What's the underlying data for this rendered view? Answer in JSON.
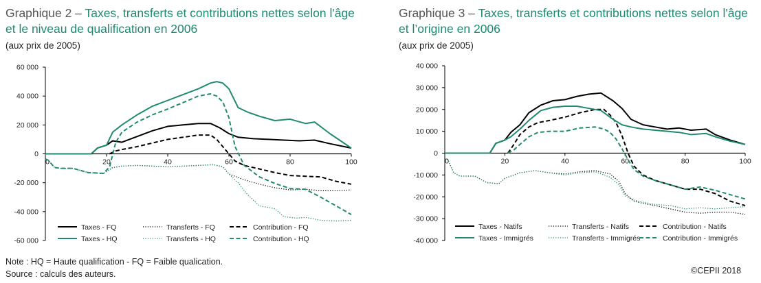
{
  "charts": [
    {
      "title_prefix": "Graphique 2 – ",
      "title_main": "Taxes, transferts et contributions nettes selon l'âge",
      "title_line2": "et le niveau de qualification en 2006",
      "subtitle": "(aux prix de 2005)"
    },
    {
      "title_prefix": "Graphique 3 – ",
      "title_main": "Taxes, transferts et contributions nettes selon l'âge",
      "title_line2": "et l’origine en 2006",
      "subtitle": "(aux prix de 2005)"
    }
  ],
  "footer": {
    "note": "Note : HQ = Haute qualification - FQ = Faible qualication.",
    "source": "Source : calculs des auteurs.",
    "copyright": "©CEPII 2018"
  },
  "colors": {
    "black": "#000000",
    "green": "#1f8a70"
  },
  "chart_data": [
    {
      "type": "line",
      "title": "Taxes, transferts et contributions nettes selon l'âge et le niveau de qualification en 2006",
      "xlim": [
        0,
        100
      ],
      "ylim": [
        -60000,
        60000
      ],
      "yticks": [
        60000,
        40000,
        20000,
        0,
        -20000,
        -40000,
        -60000
      ],
      "ytick_labels": [
        "60 000",
        "40 000",
        "20 000",
        "0",
        "-20 000",
        "-40 000",
        "-60 000"
      ],
      "xticks": [
        0,
        20,
        40,
        60,
        80,
        100
      ],
      "xtick_labels": [
        "0",
        "20",
        "40",
        "60",
        "80",
        "100"
      ],
      "series": [
        {
          "name": "Taxes - FQ",
          "color": "black",
          "dash": "solid",
          "x": [
            0,
            15,
            17,
            20,
            22,
            25,
            30,
            35,
            40,
            45,
            50,
            54,
            57,
            60,
            63,
            68,
            73,
            78,
            83,
            88,
            93,
            100
          ],
          "y": [
            0,
            0,
            4000,
            6000,
            9000,
            8000,
            12000,
            16000,
            19000,
            20000,
            21000,
            21000,
            18000,
            14000,
            11500,
            10500,
            10000,
            9500,
            9000,
            9500,
            7000,
            4000
          ]
        },
        {
          "name": "Transferts - FQ",
          "color": "black",
          "dash": "dot",
          "x": [
            0,
            1,
            3,
            5,
            9,
            14,
            19,
            22,
            25,
            30,
            35,
            40,
            45,
            50,
            55,
            58,
            60,
            65,
            70,
            75,
            80,
            85,
            90,
            95,
            100
          ],
          "y": [
            -3500,
            -4500,
            -9500,
            -10000,
            -10000,
            -13000,
            -13500,
            -9500,
            -8500,
            -8000,
            -8500,
            -9000,
            -8500,
            -8000,
            -7500,
            -9000,
            -14000,
            -18000,
            -21000,
            -23500,
            -25000,
            -24500,
            -25500,
            -25500,
            -25000
          ]
        },
        {
          "name": "Contribution - FQ",
          "color": "black",
          "dash": "dash",
          "x": [
            21,
            23,
            25,
            30,
            35,
            40,
            45,
            50,
            54,
            56,
            58,
            60,
            62,
            65,
            70,
            75,
            80,
            85,
            90,
            95,
            100
          ],
          "y": [
            0,
            2000,
            3000,
            5000,
            7500,
            10000,
            11500,
            13000,
            13000,
            10000,
            5000,
            0,
            -5000,
            -8000,
            -10500,
            -13000,
            -15000,
            -15500,
            -16000,
            -19000,
            -21000
          ]
        },
        {
          "name": "Transferts - HQ",
          "color": "green",
          "dash": "dot",
          "x": [
            0,
            1,
            3,
            5,
            9,
            14,
            19,
            22,
            25,
            30,
            35,
            40,
            45,
            50,
            55,
            58,
            60,
            63,
            66,
            70,
            75,
            78,
            82,
            85,
            90,
            95,
            100
          ],
          "y": [
            -3500,
            -4500,
            -9500,
            -10000,
            -10000,
            -13000,
            -13500,
            -9500,
            -8500,
            -8000,
            -8500,
            -9000,
            -8500,
            -8000,
            -7500,
            -9000,
            -14000,
            -20000,
            -28000,
            -36000,
            -38000,
            -43500,
            -44500,
            -44000,
            -46000,
            -46500,
            -46000
          ]
        },
        {
          "name": "Taxes - HQ",
          "color": "green",
          "dash": "solid",
          "x": [
            0,
            15,
            17,
            20,
            22,
            25,
            30,
            35,
            40,
            45,
            50,
            54,
            56,
            58,
            60,
            63,
            66,
            70,
            75,
            80,
            85,
            88,
            93,
            100
          ],
          "y": [
            0,
            0,
            4000,
            6000,
            15000,
            20000,
            27000,
            33000,
            37000,
            41000,
            45000,
            49000,
            50000,
            49000,
            45000,
            32000,
            29000,
            26000,
            23000,
            24000,
            21000,
            22000,
            14000,
            4000
          ]
        },
        {
          "name": "Contribution - HQ",
          "color": "green",
          "dash": "dash",
          "x": [
            0,
            1,
            3,
            5,
            9,
            14,
            19,
            21,
            23,
            25,
            30,
            35,
            40,
            45,
            50,
            54,
            56,
            58,
            60,
            62,
            65,
            70,
            75,
            80,
            85,
            90,
            95,
            100
          ],
          "y": [
            -3500,
            -4500,
            -9500,
            -10000,
            -10000,
            -13000,
            -13500,
            -9000,
            8000,
            15000,
            22000,
            27000,
            31000,
            35500,
            40000,
            41500,
            40000,
            36000,
            25000,
            5000,
            -8000,
            -16000,
            -20500,
            -24000,
            -24500,
            -30000,
            -36000,
            -42000
          ]
        }
      ],
      "legend": [
        [
          "Taxes - FQ",
          "Transferts - FQ",
          "Contribution - FQ"
        ],
        [
          "Taxes - HQ",
          "Transferts - HQ",
          "Contribution - HQ"
        ]
      ]
    },
    {
      "type": "line",
      "title": "Taxes, transferts et contributions nettes selon l'âge et l’origine en 2006",
      "xlim": [
        0,
        100
      ],
      "ylim": [
        -40000,
        40000
      ],
      "yticks": [
        40000,
        30000,
        20000,
        10000,
        0,
        -10000,
        -20000,
        -30000,
        -40000
      ],
      "ytick_labels": [
        "40 000",
        "30 000",
        "20 000",
        "10 000",
        "0",
        "-10 000",
        "-20 000",
        "-30 000",
        "-40 000"
      ],
      "xticks": [
        0,
        20,
        40,
        60,
        80,
        100
      ],
      "xtick_labels": [
        "0",
        "20",
        "40",
        "60",
        "80",
        "100"
      ],
      "series": [
        {
          "name": "Taxes - Natifs",
          "color": "black",
          "dash": "solid",
          "x": [
            0,
            15,
            17,
            20,
            22,
            25,
            28,
            32,
            36,
            40,
            44,
            48,
            52,
            56,
            59,
            62,
            66,
            70,
            74,
            78,
            82,
            87,
            90,
            95,
            100
          ],
          "y": [
            0,
            0,
            4500,
            6000,
            9500,
            13000,
            18500,
            22000,
            24000,
            24500,
            26000,
            27000,
            27500,
            24000,
            20500,
            15500,
            13000,
            12000,
            11000,
            11500,
            10500,
            11000,
            8500,
            6000,
            4000
          ]
        },
        {
          "name": "Transferts - Natifs",
          "color": "black",
          "dash": "dot",
          "x": [
            0,
            1,
            3,
            5,
            10,
            14,
            18,
            20,
            25,
            30,
            35,
            40,
            45,
            50,
            55,
            58,
            60,
            63,
            66,
            70,
            75,
            80,
            85,
            90,
            95,
            100
          ],
          "y": [
            -2500,
            -3000,
            -9000,
            -10500,
            -10500,
            -13500,
            -14000,
            -11500,
            -9000,
            -8000,
            -9000,
            -9500,
            -8500,
            -8000,
            -9500,
            -13000,
            -18500,
            -22000,
            -23000,
            -24000,
            -25500,
            -27000,
            -27500,
            -27000,
            -27000,
            -28000
          ]
        },
        {
          "name": "Contribution - Natifs",
          "color": "black",
          "dash": "dash",
          "x": [
            21,
            23,
            25,
            28,
            31,
            35,
            40,
            45,
            50,
            53,
            55,
            57,
            59,
            61,
            63,
            66,
            70,
            75,
            80,
            85,
            90,
            95,
            100
          ],
          "y": [
            0,
            4000,
            8500,
            12000,
            14000,
            15000,
            16500,
            18500,
            20000,
            20000,
            17500,
            14000,
            8000,
            0,
            -6000,
            -10000,
            -12500,
            -14500,
            -16500,
            -16500,
            -18500,
            -22000,
            -24000
          ]
        },
        {
          "name": "Taxes - Immigrés",
          "color": "green",
          "dash": "solid",
          "x": [
            0,
            15,
            17,
            20,
            22,
            25,
            28,
            32,
            36,
            40,
            44,
            48,
            52,
            56,
            59,
            62,
            66,
            70,
            74,
            78,
            82,
            87,
            90,
            95,
            100
          ],
          "y": [
            0,
            0,
            4500,
            6000,
            7500,
            11000,
            15000,
            19500,
            21000,
            21500,
            21500,
            20500,
            19500,
            15500,
            13000,
            12000,
            11000,
            10500,
            10000,
            9500,
            8500,
            9000,
            7500,
            5500,
            4000
          ]
        },
        {
          "name": "Transferts - Immigrés",
          "color": "green",
          "dash": "dot",
          "x": [
            0,
            1,
            3,
            5,
            10,
            14,
            18,
            20,
            25,
            30,
            35,
            40,
            45,
            50,
            55,
            58,
            60,
            63,
            66,
            70,
            75,
            80,
            85,
            90,
            95,
            100
          ],
          "y": [
            -2500,
            -3000,
            -9000,
            -10500,
            -10500,
            -13500,
            -14000,
            -11500,
            -9000,
            -8000,
            -9000,
            -10000,
            -9000,
            -8500,
            -11000,
            -14500,
            -19500,
            -21500,
            -22500,
            -23500,
            -24000,
            -25500,
            -25000,
            -25500,
            -25000,
            -24500
          ]
        },
        {
          "name": "Contribution - Immigrés",
          "color": "green",
          "dash": "dash",
          "x": [
            21,
            23,
            25,
            28,
            31,
            35,
            40,
            45,
            50,
            53,
            55,
            57,
            59,
            61,
            63,
            66,
            70,
            75,
            80,
            85,
            90,
            95,
            100
          ],
          "y": [
            0,
            1500,
            4000,
            7500,
            9500,
            10000,
            10000,
            11500,
            12000,
            11000,
            9500,
            6500,
            2000,
            -3000,
            -7500,
            -10500,
            -12500,
            -14500,
            -16500,
            -15500,
            -17000,
            -19000,
            -21000
          ]
        }
      ],
      "legend": [
        [
          "Taxes - Natifs",
          "Transferts - Natifs",
          "Contribution - Natifs"
        ],
        [
          "Taxes - Immigrés",
          "Transferts - Immigrés",
          "Contribution - Immigrés"
        ]
      ]
    }
  ]
}
